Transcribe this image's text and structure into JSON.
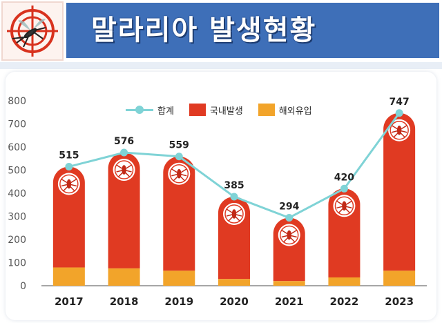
{
  "header": {
    "title": "말라리아 발생현황",
    "logo_icon": "mosquito-target-icon"
  },
  "colors": {
    "domestic": "#e03a22",
    "overseas": "#f2a42a",
    "total_line": "#7fd3d6",
    "title_band": "#3e6fb8"
  },
  "chart_data": {
    "type": "bar",
    "stacked": true,
    "categories": [
      "2017",
      "2018",
      "2019",
      "2020",
      "2021",
      "2022",
      "2023"
    ],
    "series": [
      {
        "name": "국내발생",
        "values": [
          436,
          501,
          494,
          356,
          274,
          384,
          682
        ]
      },
      {
        "name": "해외유입",
        "values": [
          79,
          75,
          65,
          29,
          20,
          36,
          65
        ]
      }
    ],
    "line": {
      "name": "합계",
      "values": [
        515,
        576,
        559,
        385,
        294,
        420,
        747
      ]
    },
    "data_labels": [
      "515",
      "576",
      "559",
      "385",
      "294",
      "420",
      "747"
    ],
    "ylim": [
      0,
      800
    ],
    "yticks": [
      "0",
      "100",
      "200",
      "300",
      "400",
      "500",
      "600",
      "700",
      "800"
    ],
    "legend_position": "top",
    "grid": false,
    "xlabel": "",
    "ylabel": ""
  },
  "legend": {
    "total": "합계",
    "domestic": "국내발생",
    "overseas": "해외유입"
  }
}
